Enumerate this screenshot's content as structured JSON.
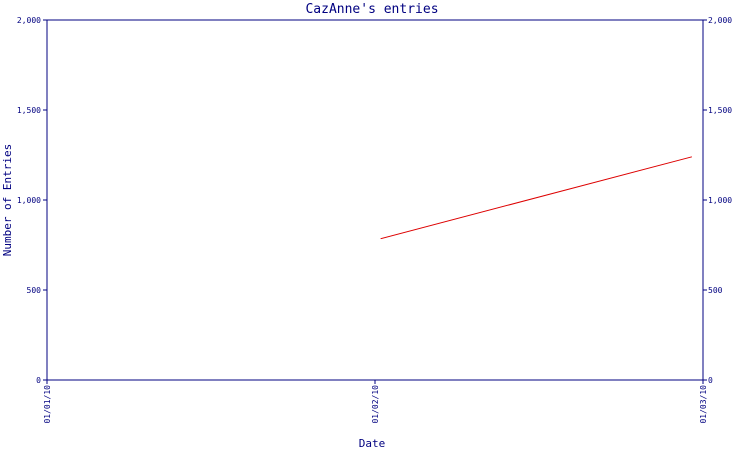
{
  "chart_data": {
    "type": "line",
    "title": "CazAnne's entries",
    "xlabel": "Date",
    "ylabel": "Number of Entries",
    "x_ticks": [
      "01/01/10",
      "01/02/10",
      "01/03/10"
    ],
    "y_ticks": [
      "0",
      "500",
      "1,000",
      "1,500",
      "2,000"
    ],
    "y_tick_values": [
      0,
      500,
      1000,
      1500,
      2000
    ],
    "ylim": [
      0,
      2000
    ],
    "xlim": [
      "2010-01-01",
      "2010-03-01"
    ],
    "grid": false,
    "right_axis_mirror": true,
    "series": [
      {
        "x": [
          "2010-01-31",
          "2010-02-28"
        ],
        "y": [
          785,
          1240
        ],
        "color": "#dd0000"
      }
    ]
  },
  "colors": {
    "axis": "#000080",
    "line": "#dd0000"
  }
}
